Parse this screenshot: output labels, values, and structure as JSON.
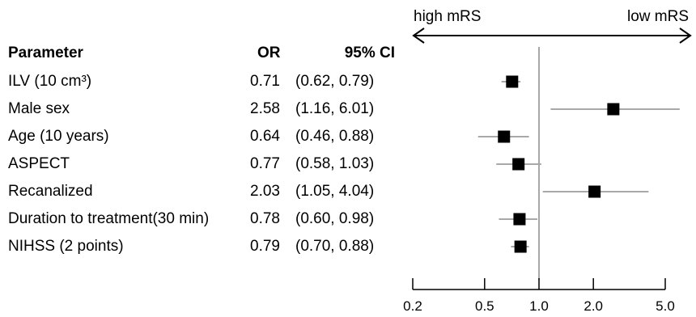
{
  "chart_data": {
    "type": "forest",
    "scale": "log",
    "xlim": [
      0.2,
      5.0
    ],
    "x_ticks": [
      0.2,
      0.5,
      1.0,
      2.0,
      5.0
    ],
    "x_tick_labels": [
      "0.2",
      "0.5",
      "1.0",
      "2.0",
      "5.0"
    ],
    "reference_line": 1.0,
    "direction_left_label": "high mRS",
    "direction_right_label": "low mRS",
    "headers": {
      "parameter": "Parameter",
      "or": "OR",
      "ci": "95% CI"
    },
    "rows": [
      {
        "label": "ILV (10 cm³)",
        "or": 0.71,
        "lo": 0.62,
        "hi": 0.79,
        "or_text": "0.71",
        "ci_text": "(0.62, 0.79)"
      },
      {
        "label": "Male sex",
        "or": 2.58,
        "lo": 1.16,
        "hi": 6.01,
        "or_text": "2.58",
        "ci_text": "(1.16, 6.01)"
      },
      {
        "label": "Age (10 years)",
        "or": 0.64,
        "lo": 0.46,
        "hi": 0.88,
        "or_text": "0.64",
        "ci_text": "(0.46, 0.88)"
      },
      {
        "label": "ASPECT",
        "or": 0.77,
        "lo": 0.58,
        "hi": 1.03,
        "or_text": "0.77",
        "ci_text": "(0.58, 1.03)"
      },
      {
        "label": "Recanalized",
        "or": 2.03,
        "lo": 1.05,
        "hi": 4.04,
        "or_text": "2.03",
        "ci_text": "(1.05, 4.04)"
      },
      {
        "label": "Duration to treatment(30 min)",
        "or": 0.78,
        "lo": 0.6,
        "hi": 0.98,
        "or_text": "0.78",
        "ci_text": "(0.60, 0.98)"
      },
      {
        "label": "NIHSS (2 points)",
        "or": 0.79,
        "lo": 0.7,
        "hi": 0.88,
        "or_text": "0.79",
        "ci_text": "(0.70, 0.88)"
      }
    ]
  }
}
